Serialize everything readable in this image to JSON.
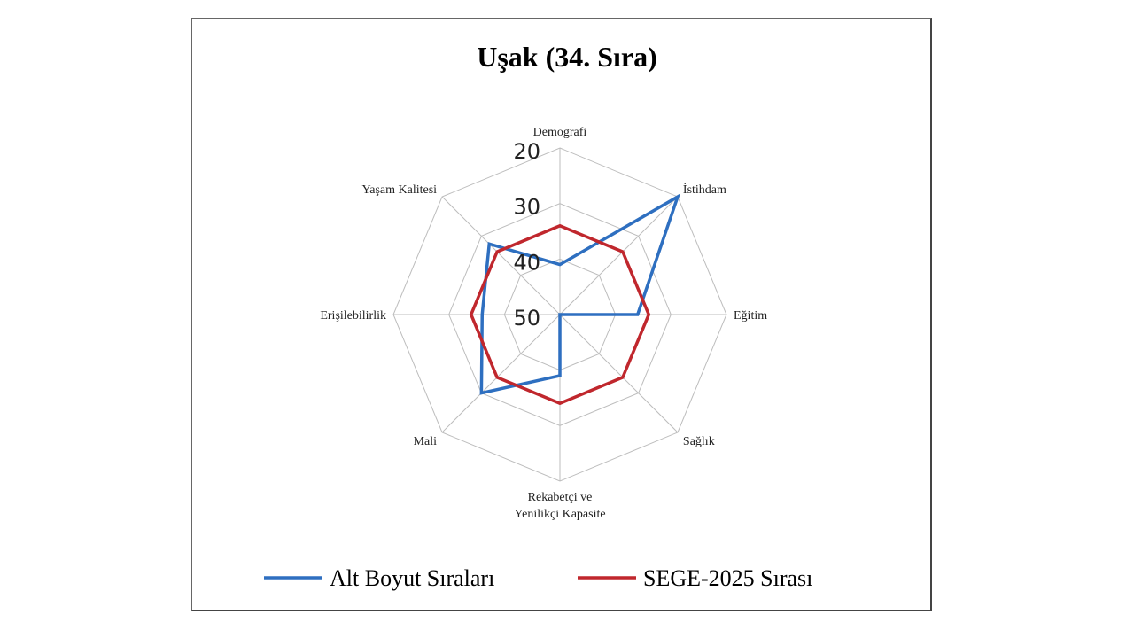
{
  "chart_data": {
    "type": "radar",
    "title": "Uşak (34. Sıra)",
    "categories": [
      "Demografi",
      "İstihdam",
      "Eğitim",
      "Sağlık",
      "Rekabetçi ve Yenilikçi Kapasite",
      "Mali",
      "Erişilebilirlik",
      "Yaşam Kalitesi"
    ],
    "category_lines": [
      [
        "Demografi"
      ],
      [
        "İstihdam"
      ],
      [
        "Eğitim"
      ],
      [
        "Sağlık"
      ],
      [
        "Rekabetçi ve",
        "Yenilikçi Kapasite"
      ],
      [
        "Mali"
      ],
      [
        "Erişilebilirlik"
      ],
      [
        "Yaşam Kalitesi"
      ]
    ],
    "radial_axis": {
      "ticks": [
        "20",
        "30",
        "40",
        "50"
      ],
      "range": [
        50,
        20
      ],
      "reversed": true
    },
    "grid": true,
    "legend_position": "bottom",
    "series": [
      {
        "name": "Alt Boyut Sıraları",
        "color": "#2e6fc0",
        "values": [
          41,
          20,
          36,
          50,
          39,
          30,
          36,
          32
        ]
      },
      {
        "name": "SEGE-2025 Sırası",
        "color": "#c0272d",
        "values": [
          34,
          34,
          34,
          34,
          34,
          34,
          34,
          34
        ]
      }
    ]
  }
}
